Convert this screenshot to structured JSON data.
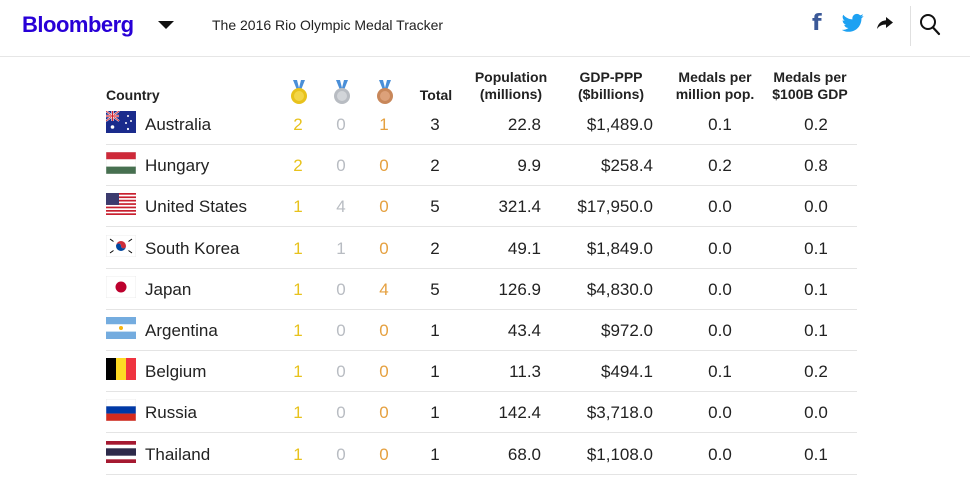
{
  "header": {
    "logo": "Bloomberg",
    "title": "The 2016 Rio Olympic Medal Tracker"
  },
  "columns": {
    "country": "Country",
    "total": "Total",
    "population": [
      "Population",
      "(millions)"
    ],
    "gdp": [
      "GDP-PPP",
      "($billions)"
    ],
    "medals_per_pop": [
      "Medals per",
      "million pop."
    ],
    "medals_per_gdp": [
      "Medals per",
      "$100B GDP"
    ]
  },
  "colors": {
    "brand": "#2800d7",
    "gold": "#e8c21c",
    "silver": "#b8bcc2",
    "bronze": "#e5a03f"
  },
  "rows": [
    {
      "country": "Australia",
      "flag": "australia-flag-icon",
      "gold": "2",
      "silver": "0",
      "bronze": "1",
      "total": "3",
      "population": "22.8",
      "gdp": "$1,489.0",
      "per_pop": "0.1",
      "per_gdp": "0.2"
    },
    {
      "country": "Hungary",
      "flag": "hungary-flag-icon",
      "gold": "2",
      "silver": "0",
      "bronze": "0",
      "total": "2",
      "population": "9.9",
      "gdp": "$258.4",
      "per_pop": "0.2",
      "per_gdp": "0.8"
    },
    {
      "country": "United States",
      "flag": "usa-flag-icon",
      "gold": "1",
      "silver": "4",
      "bronze": "0",
      "total": "5",
      "population": "321.4",
      "gdp": "$17,950.0",
      "per_pop": "0.0",
      "per_gdp": "0.0"
    },
    {
      "country": "South Korea",
      "flag": "south-korea-flag-icon",
      "gold": "1",
      "silver": "1",
      "bronze": "0",
      "total": "2",
      "population": "49.1",
      "gdp": "$1,849.0",
      "per_pop": "0.0",
      "per_gdp": "0.1"
    },
    {
      "country": "Japan",
      "flag": "japan-flag-icon",
      "gold": "1",
      "silver": "0",
      "bronze": "4",
      "total": "5",
      "population": "126.9",
      "gdp": "$4,830.0",
      "per_pop": "0.0",
      "per_gdp": "0.1"
    },
    {
      "country": "Argentina",
      "flag": "argentina-flag-icon",
      "gold": "1",
      "silver": "0",
      "bronze": "0",
      "total": "1",
      "population": "43.4",
      "gdp": "$972.0",
      "per_pop": "0.0",
      "per_gdp": "0.1"
    },
    {
      "country": "Belgium",
      "flag": "belgium-flag-icon",
      "gold": "1",
      "silver": "0",
      "bronze": "0",
      "total": "1",
      "population": "11.3",
      "gdp": "$494.1",
      "per_pop": "0.1",
      "per_gdp": "0.2"
    },
    {
      "country": "Russia",
      "flag": "russia-flag-icon",
      "gold": "1",
      "silver": "0",
      "bronze": "0",
      "total": "1",
      "population": "142.4",
      "gdp": "$3,718.0",
      "per_pop": "0.0",
      "per_gdp": "0.0"
    },
    {
      "country": "Thailand",
      "flag": "thailand-flag-icon",
      "gold": "1",
      "silver": "0",
      "bronze": "0",
      "total": "1",
      "population": "68.0",
      "gdp": "$1,108.0",
      "per_pop": "0.0",
      "per_gdp": "0.1"
    }
  ]
}
